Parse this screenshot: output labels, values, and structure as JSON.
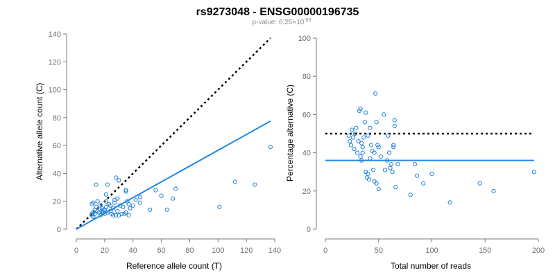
{
  "colors": {
    "series": "#1f7fd8",
    "reference": "#000000"
  },
  "header": {
    "title": "rs9273048 - ENSG00000196735",
    "pvalue_prefix": "p-value: 6.25×10",
    "pvalue_exponent": "-60"
  },
  "chart_data": [
    {
      "type": "scatter",
      "xlabel": "Reference allele count (T)",
      "ylabel": "Alternative allele count (C)",
      "xlim": [
        0,
        140
      ],
      "ylim": [
        0,
        140
      ],
      "xticks": [
        "0",
        "20",
        "40",
        "60",
        "80",
        "100",
        "120",
        "140"
      ],
      "yticks": [
        "0",
        "20",
        "40",
        "60",
        "80",
        "100",
        "120",
        "140"
      ],
      "points": [
        [
          11,
          10
        ],
        [
          11,
          11
        ],
        [
          12,
          12
        ],
        [
          12,
          9
        ],
        [
          13,
          11
        ],
        [
          11,
          18
        ],
        [
          12,
          19
        ],
        [
          13,
          14
        ],
        [
          14,
          16
        ],
        [
          15,
          20
        ],
        [
          14,
          32
        ],
        [
          15,
          13
        ],
        [
          16,
          12
        ],
        [
          17,
          17
        ],
        [
          17,
          10
        ],
        [
          18,
          13
        ],
        [
          18,
          15
        ],
        [
          19,
          14
        ],
        [
          19,
          12
        ],
        [
          20,
          11
        ],
        [
          20,
          14
        ],
        [
          21,
          16
        ],
        [
          21,
          20
        ],
        [
          21,
          25
        ],
        [
          22,
          32
        ],
        [
          22,
          12
        ],
        [
          23,
          18
        ],
        [
          24,
          17
        ],
        [
          24,
          13
        ],
        [
          25,
          11
        ],
        [
          26,
          10
        ],
        [
          26,
          15
        ],
        [
          27,
          21
        ],
        [
          27,
          19
        ],
        [
          28,
          10
        ],
        [
          28,
          37
        ],
        [
          29,
          13
        ],
        [
          29,
          22
        ],
        [
          30,
          35
        ],
        [
          30,
          10
        ],
        [
          31,
          17
        ],
        [
          32,
          11
        ],
        [
          33,
          16
        ],
        [
          34,
          11
        ],
        [
          35,
          12
        ],
        [
          35,
          27
        ],
        [
          35,
          28
        ],
        [
          36,
          20
        ],
        [
          37,
          18
        ],
        [
          37,
          10
        ],
        [
          38,
          15
        ],
        [
          40,
          17
        ],
        [
          42,
          21
        ],
        [
          45,
          19
        ],
        [
          45,
          23
        ],
        [
          52,
          14
        ],
        [
          56,
          28
        ],
        [
          60,
          24
        ],
        [
          64,
          14
        ],
        [
          68,
          22
        ],
        [
          70,
          29
        ],
        [
          101,
          16
        ],
        [
          112,
          34
        ],
        [
          126,
          32
        ],
        [
          137,
          59
        ]
      ],
      "regression": {
        "x": [
          0,
          137
        ],
        "y": [
          0,
          77.5
        ]
      },
      "reference": {
        "x": [
          0,
          137
        ],
        "y": [
          0,
          137
        ]
      }
    },
    {
      "type": "scatter",
      "xlabel": "Total number of reads",
      "ylabel": "Percentage alternative (C)",
      "xlim": [
        0,
        200
      ],
      "ylim": [
        0,
        100
      ],
      "xticks": [
        "0",
        "50",
        "100",
        "150",
        "200"
      ],
      "yticks": [
        "0",
        "20",
        "40",
        "60",
        "80",
        "100"
      ],
      "points": [
        [
          22,
          49
        ],
        [
          23,
          46
        ],
        [
          24,
          44
        ],
        [
          25,
          52
        ],
        [
          26,
          48
        ],
        [
          27,
          42
        ],
        [
          28,
          50
        ],
        [
          29,
          53
        ],
        [
          30,
          40
        ],
        [
          31,
          46
        ],
        [
          32,
          62
        ],
        [
          33,
          63
        ],
        [
          33,
          38
        ],
        [
          34,
          36
        ],
        [
          34,
          45
        ],
        [
          35,
          43
        ],
        [
          35,
          40
        ],
        [
          36,
          48
        ],
        [
          37,
          56
        ],
        [
          38,
          61
        ],
        [
          38,
          30
        ],
        [
          39,
          27
        ],
        [
          40,
          29
        ],
        [
          40,
          49
        ],
        [
          41,
          26
        ],
        [
          42,
          37
        ],
        [
          42,
          53
        ],
        [
          43,
          44
        ],
        [
          44,
          41
        ],
        [
          45,
          31
        ],
        [
          46,
          25
        ],
        [
          46,
          40
        ],
        [
          47,
          71
        ],
        [
          48,
          56
        ],
        [
          48,
          24
        ],
        [
          49,
          44
        ],
        [
          50,
          21
        ],
        [
          50,
          43
        ],
        [
          52,
          38
        ],
        [
          55,
          60
        ],
        [
          56,
          31
        ],
        [
          58,
          36
        ],
        [
          59,
          49
        ],
        [
          60,
          40
        ],
        [
          61,
          32
        ],
        [
          62,
          34
        ],
        [
          63,
          30
        ],
        [
          64,
          43
        ],
        [
          64,
          44
        ],
        [
          65,
          57
        ],
        [
          65,
          54
        ],
        [
          66,
          22
        ],
        [
          68,
          34
        ],
        [
          80,
          18
        ],
        [
          84,
          34
        ],
        [
          86,
          28
        ],
        [
          92,
          24
        ],
        [
          100,
          29
        ],
        [
          117,
          14
        ],
        [
          145,
          24
        ],
        [
          158,
          20
        ],
        [
          196,
          30
        ]
      ],
      "regression": {
        "x": [
          0,
          196
        ],
        "y": [
          36,
          36
        ]
      },
      "reference": {
        "x": [
          0,
          196
        ],
        "y": [
          50,
          50
        ]
      }
    }
  ]
}
